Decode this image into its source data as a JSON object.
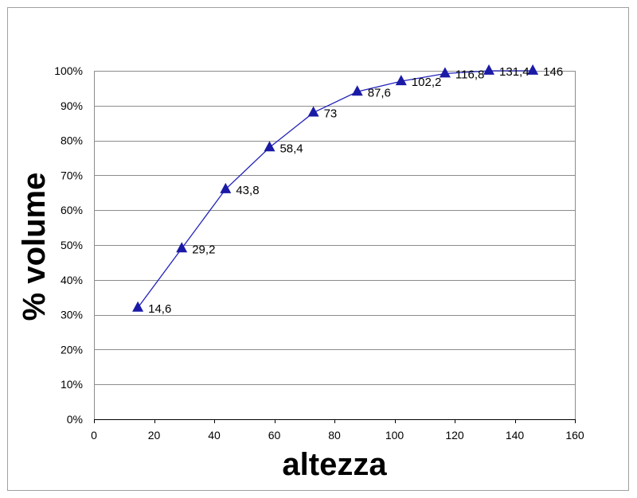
{
  "chart_data": {
    "type": "line",
    "title": "",
    "xlabel": "altezza",
    "ylabel": "% volume",
    "xlim": [
      0,
      160
    ],
    "ylim": [
      0,
      100
    ],
    "x_ticks": [
      0,
      20,
      40,
      60,
      80,
      100,
      120,
      140,
      160
    ],
    "y_ticks": [
      0,
      10,
      20,
      30,
      40,
      50,
      60,
      70,
      80,
      90,
      100
    ],
    "y_tick_suffix": "%",
    "grid": "horizontal",
    "legend": "none",
    "marker": "triangle",
    "series": [
      {
        "x": [
          14.6,
          29.2,
          43.8,
          58.4,
          73,
          87.6,
          102.2,
          116.8,
          131.4,
          146
        ],
        "y": [
          32,
          49,
          66,
          78,
          88,
          94,
          97,
          99.2,
          100,
          100
        ],
        "labels": [
          "14,6",
          "29,2",
          "43,8",
          "58,4",
          "73",
          "87,6",
          "102,2",
          "116,8",
          "131,4",
          "146"
        ],
        "color": "#1a1aa6",
        "line_color": "#2222bb"
      }
    ]
  }
}
